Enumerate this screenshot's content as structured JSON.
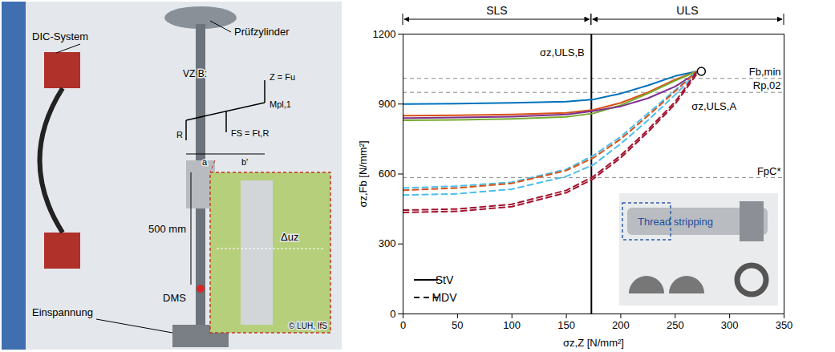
{
  "chart_data": {
    "type": "line",
    "xlabel": "σz,Z [N/mm²]",
    "ylabel": "σz,Fb [N/mm²]",
    "xlim": [
      0,
      350
    ],
    "xticks": [
      0,
      50,
      100,
      150,
      200,
      250,
      300,
      350
    ],
    "ylim": [
      0,
      1200
    ],
    "yticks": [
      0,
      300,
      600,
      900,
      1200
    ],
    "grid": false,
    "legend": "lower left",
    "x": [
      0,
      50,
      100,
      150,
      175,
      200,
      225,
      250,
      270
    ],
    "series": [
      {
        "name": "StV",
        "color": "#0072BD",
        "line_style": "solid",
        "values": [
          900,
          902,
          905,
          910,
          920,
          945,
          980,
          1020,
          1040
        ]
      },
      {
        "name": "StV",
        "color": "#D95319",
        "line_style": "solid",
        "values": [
          850,
          852,
          855,
          862,
          875,
          905,
          950,
          1005,
          1040
        ]
      },
      {
        "name": "StV",
        "color": "#77AC30",
        "line_style": "solid",
        "values": [
          830,
          832,
          836,
          845,
          860,
          895,
          945,
          1000,
          1040
        ]
      },
      {
        "name": "StV",
        "color": "#7E2F8E",
        "line_style": "solid",
        "values": [
          840,
          842,
          846,
          855,
          870,
          890,
          925,
          975,
          1035
        ]
      },
      {
        "name": "MDV",
        "color": "#4DBEEE",
        "line_style": "dashed",
        "values": [
          540,
          548,
          565,
          620,
          680,
          760,
          860,
          960,
          1040
        ]
      },
      {
        "name": "MDV",
        "color": "#D95319",
        "line_style": "dashed",
        "values": [
          530,
          540,
          560,
          615,
          670,
          750,
          850,
          955,
          1040
        ]
      },
      {
        "name": "MDV",
        "color": "#4DBEEE",
        "line_style": "dashed",
        "values": [
          510,
          515,
          535,
          590,
          640,
          730,
          830,
          940,
          1035
        ]
      },
      {
        "name": "MDV",
        "color": "#A2142F",
        "line_style": "dashed",
        "values": [
          445,
          450,
          470,
          530,
          590,
          680,
          790,
          910,
          1040
        ]
      },
      {
        "name": "MDV",
        "color": "#A2142F",
        "line_style": "dashed",
        "values": [
          435,
          440,
          460,
          520,
          580,
          670,
          780,
          900,
          1030
        ]
      }
    ],
    "hlines": [
      {
        "label": "Fb,min",
        "value": 1010
      },
      {
        "label": "Rp,02",
        "value": 950
      },
      {
        "label": "FpC*",
        "value": 585
      }
    ],
    "vlines": [
      {
        "label": "σz,ULS,B",
        "value": 173
      }
    ],
    "regions": [
      {
        "label": "SLS",
        "from": 0,
        "to": 173
      },
      {
        "label": "ULS",
        "from": 173,
        "to": 350
      }
    ],
    "markers": [
      {
        "label": "σz,ULS,A",
        "x": 274,
        "y": 1040
      }
    ],
    "inset": {
      "label": "Thread stripping"
    }
  },
  "photo": {
    "labels": [
      "Prüfzylinder",
      "DIC-System",
      "VZ B:",
      "Z = Fu",
      "Mpl,1",
      "R",
      "FS = Ft,R",
      "a",
      "b'",
      "500 mm",
      "DMS",
      "Einspannung",
      "Δuz",
      "© LUH, IfS"
    ]
  }
}
